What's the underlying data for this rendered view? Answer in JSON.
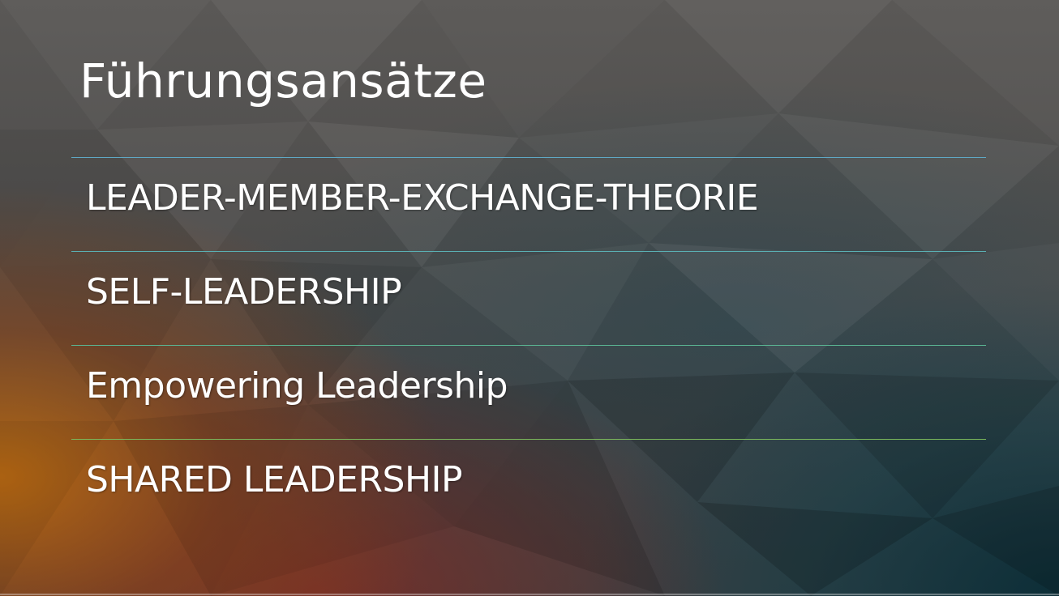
{
  "slide": {
    "title": "Führungsansätze",
    "items": [
      {
        "label": "LEADER-MEMBER-EXCHANGE-THEORIE"
      },
      {
        "label": "SELF-LEADERSHIP"
      },
      {
        "label": "Empowering Leadership"
      },
      {
        "label": "SHARED LEADERSHIP"
      }
    ]
  },
  "colors": {
    "text": "#ffffff",
    "divider_1": "#5fa8c4",
    "divider_2": "#5ab0b4",
    "divider_3": "#5ab492",
    "divider_4": "#7ab85c"
  }
}
